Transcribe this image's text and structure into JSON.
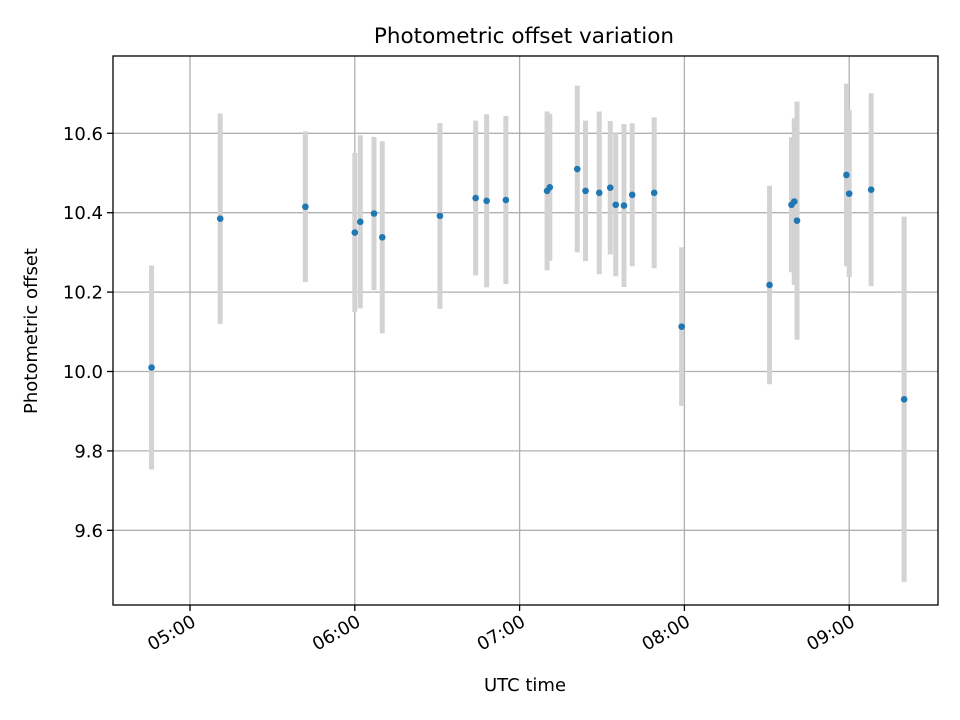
{
  "chart_data": {
    "type": "scatter",
    "title": "Photometric offset variation",
    "xlabel": "UTC time",
    "ylabel": "Photometric offset",
    "grid": true,
    "x_tick_labels": [
      "05:00",
      "06:00",
      "07:00",
      "08:00",
      "09:00"
    ],
    "x_tick_values": [
      "05:00",
      "06:00",
      "07:00",
      "08:00",
      "09:00"
    ],
    "xlim": [
      "04:46",
      "09:33"
    ],
    "y_tick_labels": [
      "9.6",
      "9.8",
      "10.0",
      "10.2",
      "10.4",
      "10.6"
    ],
    "y_tick_values": [
      9.6,
      9.8,
      10.0,
      10.2,
      10.4,
      10.6
    ],
    "ylim": [
      9.44,
      10.785
    ],
    "colors": {
      "marker": "#1f77b4",
      "errorbar": "#d3d3d3",
      "grid": "#b0b0b0"
    },
    "points": [
      {
        "x": "04:46",
        "y": 10.01,
        "yerr": 0.257
      },
      {
        "x": "05:11",
        "y": 10.385,
        "yerr": 0.265
      },
      {
        "x": "05:42",
        "y": 10.415,
        "yerr": 0.19
      },
      {
        "x": "06:00",
        "y": 10.35,
        "yerr": 0.2
      },
      {
        "x": "06:02",
        "y": 10.377,
        "yerr": 0.218
      },
      {
        "x": "06:07",
        "y": 10.398,
        "yerr": 0.193
      },
      {
        "x": "06:10",
        "y": 10.338,
        "yerr": 0.242
      },
      {
        "x": "06:31",
        "y": 10.392,
        "yerr": 0.234
      },
      {
        "x": "06:44",
        "y": 10.437,
        "yerr": 0.195
      },
      {
        "x": "06:48",
        "y": 10.43,
        "yerr": 0.218
      },
      {
        "x": "06:55",
        "y": 10.432,
        "yerr": 0.212
      },
      {
        "x": "07:10",
        "y": 10.455,
        "yerr": 0.2
      },
      {
        "x": "07:11",
        "y": 10.464,
        "yerr": 0.185
      },
      {
        "x": "07:21",
        "y": 10.51,
        "yerr": 0.21
      },
      {
        "x": "07:24",
        "y": 10.455,
        "yerr": 0.177
      },
      {
        "x": "07:29",
        "y": 10.45,
        "yerr": 0.205
      },
      {
        "x": "07:33",
        "y": 10.463,
        "yerr": 0.168
      },
      {
        "x": "07:35",
        "y": 10.42,
        "yerr": 0.18
      },
      {
        "x": "07:38",
        "y": 10.418,
        "yerr": 0.205
      },
      {
        "x": "07:41",
        "y": 10.445,
        "yerr": 0.18
      },
      {
        "x": "07:49",
        "y": 10.45,
        "yerr": 0.19
      },
      {
        "x": "07:59",
        "y": 10.113,
        "yerr": 0.2
      },
      {
        "x": "08:31",
        "y": 10.218,
        "yerr": 0.25
      },
      {
        "x": "08:39",
        "y": 10.42,
        "yerr": 0.17
      },
      {
        "x": "08:40",
        "y": 10.428,
        "yerr": 0.21
      },
      {
        "x": "08:41",
        "y": 10.38,
        "yerr": 0.3
      },
      {
        "x": "08:59",
        "y": 10.495,
        "yerr": 0.23
      },
      {
        "x": "09:00",
        "y": 10.448,
        "yerr": 0.21
      },
      {
        "x": "09:08",
        "y": 10.458,
        "yerr": 0.243
      },
      {
        "x": "09:20",
        "y": 9.93,
        "yerr": 0.46
      }
    ]
  }
}
